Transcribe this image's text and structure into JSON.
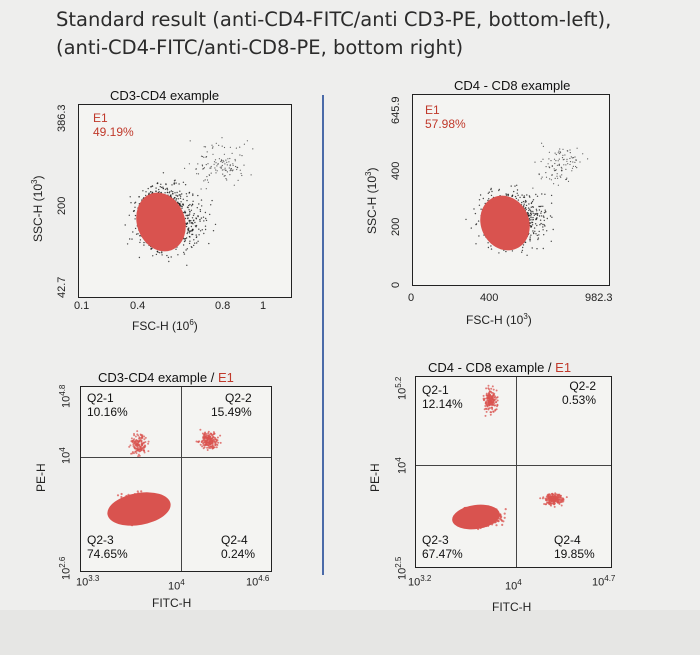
{
  "title": {
    "line1": "Standard result (anti-CD4-FITC/anti CD3-PE, bottom-left),",
    "line2": "(anti-CD4-FITC/anti-CD8-PE, bottom right)"
  },
  "panels": {
    "tl": {
      "title": "CD3-CD4 example",
      "gate": "E1",
      "gate_pct": "49.19%",
      "xlabel": "FSC-H (10",
      "xlabel_exp": "6",
      "xlabel_tail": ")",
      "ylabel": "SSC-H (10",
      "ylabel_exp": "3",
      "ylabel_tail": ")",
      "xticks": [
        "0.1",
        "0.4",
        "0.8",
        "1"
      ],
      "yticks": [
        "42.7",
        "200",
        "386.3"
      ]
    },
    "tr": {
      "title": "CD4 - CD8 example",
      "gate": "E1",
      "gate_pct": "57.98%",
      "xlabel": "FSC-H  (10",
      "xlabel_exp": "3",
      "xlabel_tail": ")",
      "ylabel": "SSC-H (10",
      "ylabel_exp": "3",
      "ylabel_tail": ")",
      "xticks": [
        "0",
        "400",
        "982.3"
      ],
      "yticks": [
        "0",
        "200",
        "400",
        "645.9"
      ]
    },
    "bl": {
      "title": "CD3-CD4 example / ",
      "title_gate": "E1",
      "q1": "Q2-1\n10.16%",
      "q2": "Q2-2\n15.49%",
      "q3": "Q2-3\n74.65%",
      "q4": "Q2-4\n0.24%",
      "xlabel": "FITC-H",
      "ylabel": "PE-H",
      "xticks": [
        {
          "base": "10",
          "exp": "3.3"
        },
        {
          "base": "10",
          "exp": "4"
        },
        {
          "base": "10",
          "exp": "4.6"
        }
      ],
      "yticks": [
        {
          "base": "10",
          "exp": "2.6"
        },
        {
          "base": "10",
          "exp": "4"
        },
        {
          "base": "10",
          "exp": "4.8"
        }
      ]
    },
    "br": {
      "title": "CD4 - CD8 example / ",
      "title_gate": "E1",
      "q1": "Q2-1\n12.14%",
      "q2": "Q2-2\n0.53%",
      "q3": "Q2-3\n67.47%",
      "q4": "Q2-4\n19.85%",
      "xlabel": "FITC-H",
      "ylabel": "PE-H",
      "xticks": [
        {
          "base": "10",
          "exp": "3.2"
        },
        {
          "base": "10",
          "exp": "4"
        },
        {
          "base": "10",
          "exp": "4.7"
        }
      ],
      "yticks": [
        {
          "base": "10",
          "exp": "2.5"
        },
        {
          "base": "10",
          "exp": "4"
        },
        {
          "base": "10",
          "exp": "5.2"
        }
      ]
    }
  },
  "colors": {
    "title_highlight": "#c0392b",
    "divider": "#4a6aa8",
    "dots": "#1a1a1a",
    "population": "#d9534f"
  }
}
